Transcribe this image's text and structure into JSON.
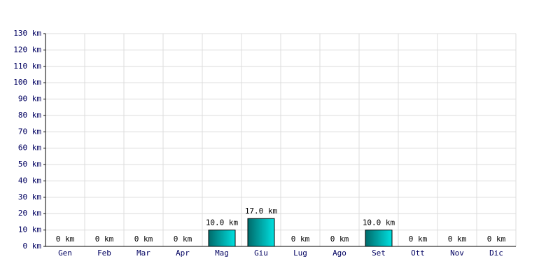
{
  "chart_data": {
    "type": "bar",
    "categories": [
      "Gen",
      "Feb",
      "Mar",
      "Apr",
      "Mag",
      "Giu",
      "Lug",
      "Ago",
      "Set",
      "Ott",
      "Nov",
      "Dic"
    ],
    "values": [
      0,
      0,
      0,
      0,
      10,
      17,
      0,
      0,
      10,
      0,
      0,
      0
    ],
    "value_labels": [
      "0 km",
      "0 km",
      "0 km",
      "0 km",
      "10.0 km",
      "17.0 km",
      "0 km",
      "0 km",
      "10.0 km",
      "0 km",
      "0 km",
      "0 km"
    ],
    "color": "#00e0e0",
    "ylim": [
      0,
      130
    ],
    "yticks": [
      {
        "value": 0,
        "label": "0 km"
      },
      {
        "value": 10,
        "label": "10 km"
      },
      {
        "value": 20,
        "label": "20 km"
      },
      {
        "value": 30,
        "label": "30 km"
      },
      {
        "value": 40,
        "label": "40 km"
      },
      {
        "value": 50,
        "label": "50 km"
      },
      {
        "value": 60,
        "label": "60 km"
      },
      {
        "value": 70,
        "label": "70 km"
      },
      {
        "value": 80,
        "label": "80 km"
      },
      {
        "value": 90,
        "label": "90 km"
      },
      {
        "value": 100,
        "label": "100 km"
      },
      {
        "value": 110,
        "label": "110 km"
      },
      {
        "value": 120,
        "label": "120 km"
      },
      {
        "value": 130,
        "label": "130 km"
      }
    ],
    "grid": true
  }
}
